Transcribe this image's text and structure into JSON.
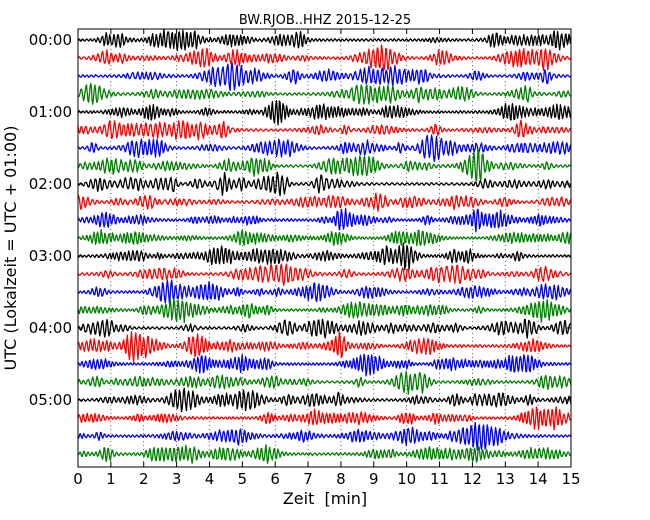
{
  "chart_data": {
    "type": "line",
    "title": "BW.RJOB..HHZ 2015-12-25",
    "xlabel": "Zeit  [min]",
    "ylabel": "UTC (Lokalzeit = UTC + 01:00)",
    "xlim": [
      0,
      15
    ],
    "x_ticks": [
      "0",
      "1",
      "2",
      "3",
      "4",
      "5",
      "6",
      "7",
      "8",
      "9",
      "10",
      "11",
      "12",
      "13",
      "14",
      "15"
    ],
    "y_ticks": [
      "00:00",
      "01:00",
      "02:00",
      "03:00",
      "04:00",
      "05:00"
    ],
    "trace_interval_min": 15,
    "trace_count": 24,
    "colors": [
      "#000000",
      "#ff0000",
      "#0000ff",
      "#008000"
    ],
    "grid": "vertical dotted lines at each minute",
    "signal": "continuous seismic noise, amplitude roughly uniform across traces"
  }
}
